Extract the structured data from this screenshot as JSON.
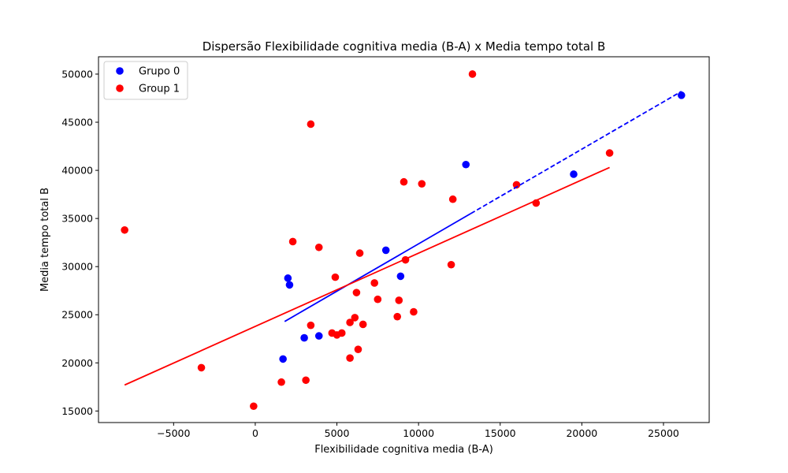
{
  "chart_data": {
    "type": "scatter",
    "title": "Dispersão Flexibilidade cognitiva media (B-A) x Media tempo total B",
    "xlabel": "Flexibilidade cognitiva media (B-A)",
    "ylabel": "Media tempo total B",
    "xlim": [
      -9600,
      27800
    ],
    "ylim": [
      13800,
      51800
    ],
    "x_ticks": [
      -5000,
      0,
      5000,
      10000,
      15000,
      20000,
      25000
    ],
    "x_tick_labels": [
      "−5000",
      "0",
      "5000",
      "10000",
      "15000",
      "20000",
      "25000"
    ],
    "y_ticks": [
      15000,
      20000,
      25000,
      30000,
      35000,
      40000,
      45000,
      50000
    ],
    "y_tick_labels": [
      "15000",
      "20000",
      "25000",
      "30000",
      "35000",
      "40000",
      "45000",
      "50000"
    ],
    "grid": false,
    "legend_position": "top-left",
    "series": [
      {
        "name": "Grupo 0",
        "color": "#0000ff",
        "points": [
          [
            1700,
            20400
          ],
          [
            2000,
            28800
          ],
          [
            2100,
            28100
          ],
          [
            3000,
            22600
          ],
          [
            3900,
            22800
          ],
          [
            8000,
            31700
          ],
          [
            8900,
            29000
          ],
          [
            12900,
            40600
          ],
          [
            19500,
            39600
          ],
          [
            26100,
            47800
          ]
        ],
        "fit_line": {
          "x": [
            1800,
            26100
          ],
          "y": [
            24300,
            48200
          ],
          "dashed_from_x": 13200
        }
      },
      {
        "name": "Group 1",
        "color": "#ff0000",
        "points": [
          [
            -8000,
            33800
          ],
          [
            -3300,
            19500
          ],
          [
            -100,
            15500
          ],
          [
            1600,
            18000
          ],
          [
            2300,
            32600
          ],
          [
            3100,
            18200
          ],
          [
            3400,
            23900
          ],
          [
            3400,
            44800
          ],
          [
            3900,
            32000
          ],
          [
            4700,
            23100
          ],
          [
            4900,
            28900
          ],
          [
            5000,
            22900
          ],
          [
            5300,
            23100
          ],
          [
            5800,
            24200
          ],
          [
            5800,
            20500
          ],
          [
            6100,
            24700
          ],
          [
            6200,
            27300
          ],
          [
            6300,
            21400
          ],
          [
            6400,
            31400
          ],
          [
            6600,
            24000
          ],
          [
            7300,
            28300
          ],
          [
            7500,
            26600
          ],
          [
            8700,
            24800
          ],
          [
            8800,
            26500
          ],
          [
            9100,
            38800
          ],
          [
            9200,
            30700
          ],
          [
            9700,
            25300
          ],
          [
            10200,
            38600
          ],
          [
            12000,
            30200
          ],
          [
            12100,
            37000
          ],
          [
            13300,
            50000
          ],
          [
            16000,
            38500
          ],
          [
            17200,
            36600
          ],
          [
            21700,
            41800
          ]
        ],
        "fit_line": {
          "x": [
            -8000,
            21700
          ],
          "y": [
            17700,
            40300
          ]
        }
      }
    ]
  }
}
